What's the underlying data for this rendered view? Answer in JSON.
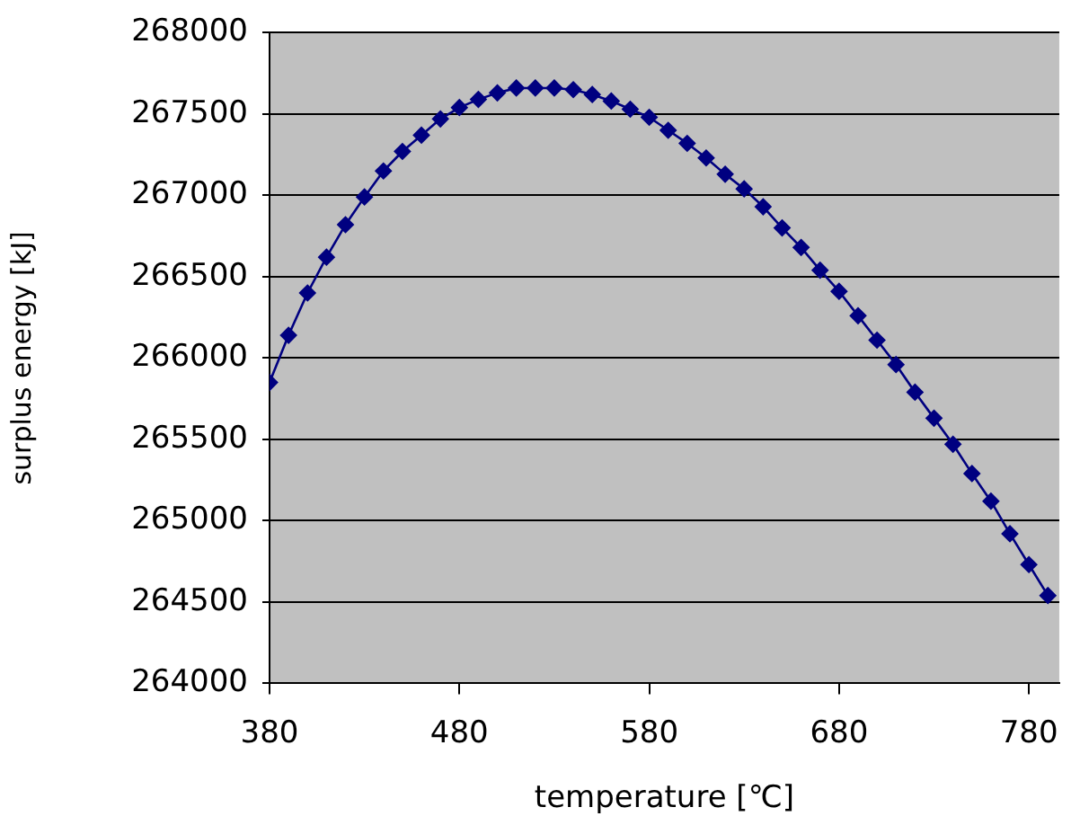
{
  "chart_data": {
    "type": "line",
    "xlabel": "temperature [℃]",
    "ylabel": "surplus energy [kJ]",
    "x": [
      380,
      390,
      400,
      410,
      420,
      430,
      440,
      450,
      460,
      470,
      480,
      490,
      500,
      510,
      520,
      530,
      540,
      550,
      560,
      570,
      580,
      590,
      600,
      610,
      620,
      630,
      640,
      650,
      660,
      670,
      680,
      690,
      700,
      710,
      720,
      730,
      740,
      750,
      760,
      770,
      780,
      790
    ],
    "series": [
      {
        "color": "#000080",
        "values": [
          265850,
          266140,
          266400,
          266620,
          266820,
          266990,
          267150,
          267270,
          267370,
          267470,
          267540,
          267590,
          267630,
          267660,
          267660,
          267660,
          267650,
          267620,
          267580,
          267530,
          267480,
          267400,
          267320,
          267230,
          267130,
          267040,
          266930,
          266800,
          266680,
          266540,
          266410,
          266260,
          266110,
          265960,
          265790,
          265630,
          265470,
          265290,
          265120,
          264920,
          264730,
          264540
        ]
      }
    ],
    "xlim": [
      380,
      796
    ],
    "xticks": [
      380,
      480,
      580,
      680,
      780
    ],
    "ylim": [
      264000,
      268000
    ],
    "yticks": [
      264000,
      264500,
      265000,
      265500,
      266000,
      266500,
      267000,
      267500,
      268000
    ],
    "grid": "y",
    "legend": false,
    "marker": "diamond",
    "line_style": "solid"
  }
}
